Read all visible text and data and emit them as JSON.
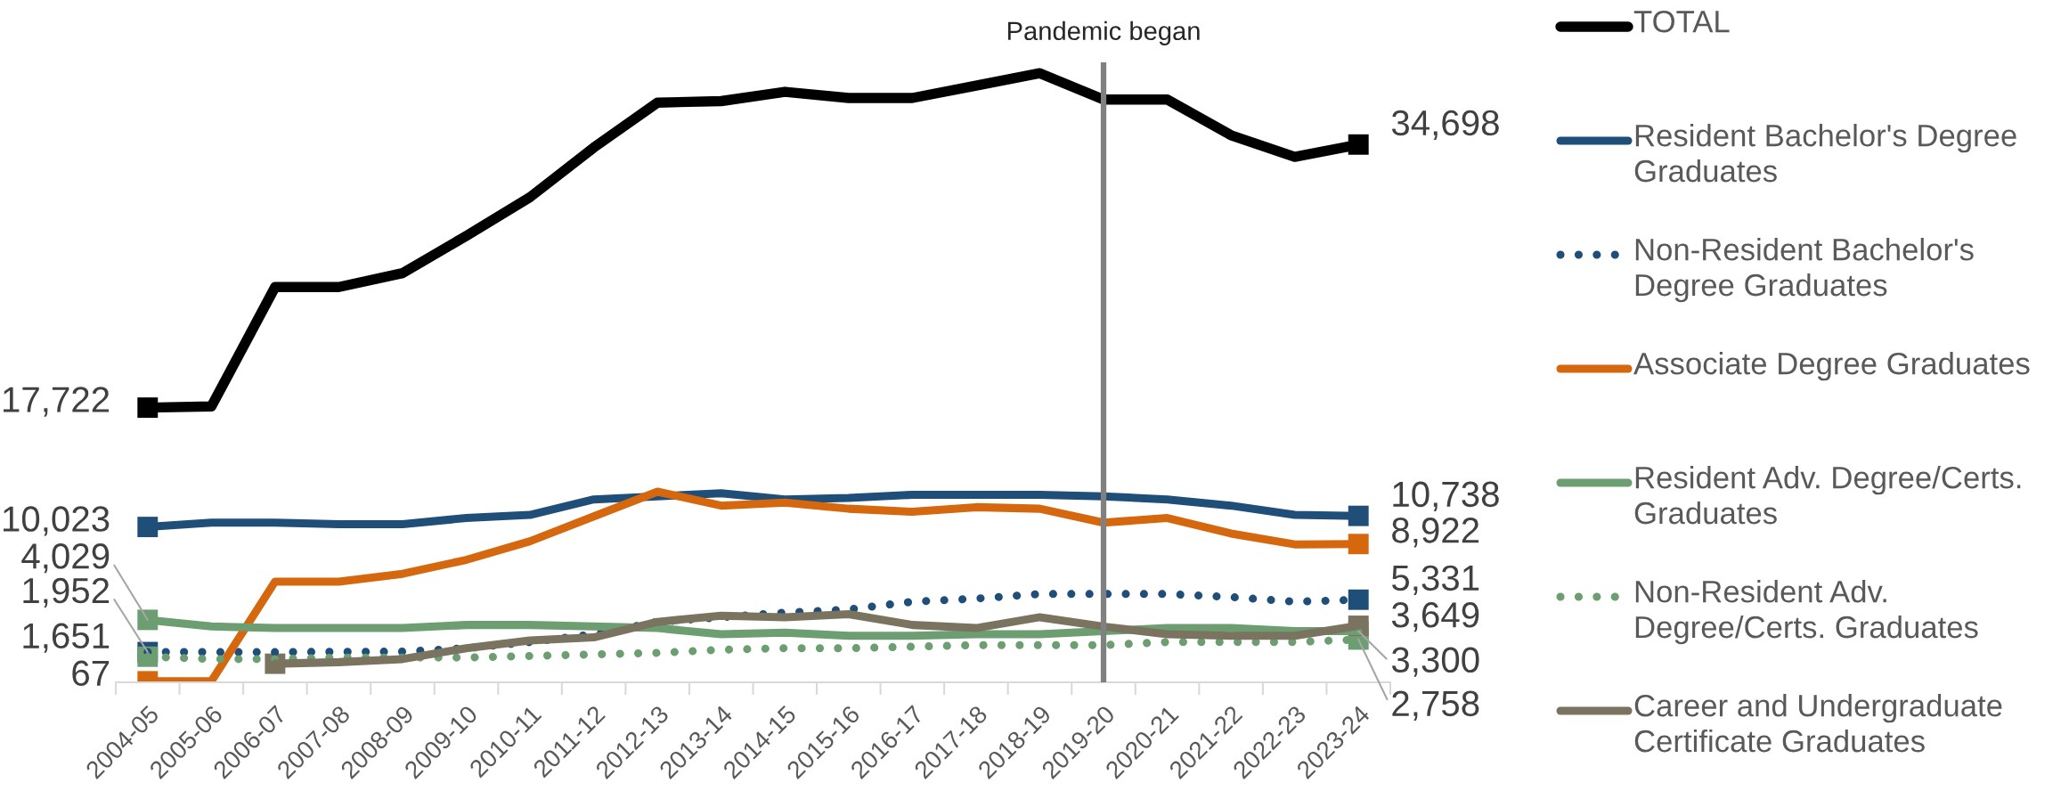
{
  "chart_data": {
    "type": "line",
    "categories": [
      "2004-05",
      "2005-06",
      "2006-07",
      "2007-08",
      "2008-09",
      "2009-10",
      "2010-11",
      "2011-12",
      "2012-13",
      "2013-14",
      "2014-15",
      "2015-16",
      "2016-17",
      "2017-18",
      "2018-19",
      "2019-20",
      "2020-21",
      "2021-22",
      "2022-23",
      "2023-24"
    ],
    "ylim": [
      0,
      40000
    ],
    "tick_labels": "x",
    "legend": "right",
    "series": [
      {
        "name": "TOTAL",
        "color": "#000000",
        "line_style": "solid",
        "values": [
          17722,
          17800,
          25500,
          25500,
          26400,
          28800,
          31300,
          34500,
          37400,
          37500,
          38100,
          37700,
          37700,
          38500,
          39300,
          37600,
          37600,
          35300,
          33900,
          34698
        ],
        "value_labels": [
          "17,722",
          null,
          null,
          null,
          null,
          null,
          null,
          null,
          null,
          null,
          null,
          null,
          null,
          null,
          null,
          null,
          null,
          null,
          null,
          "34,698"
        ]
      },
      {
        "name": "Resident Bachelor's Degree Graduates",
        "color": "#1f4e79",
        "line_style": "solid",
        "values": [
          10023,
          10300,
          10300,
          10200,
          10200,
          10600,
          10800,
          11800,
          12000,
          12200,
          11800,
          11900,
          12100,
          12100,
          12100,
          12000,
          11800,
          11400,
          10800,
          10738
        ],
        "value_labels": [
          "10,023",
          null,
          null,
          null,
          null,
          null,
          null,
          null,
          null,
          null,
          null,
          null,
          null,
          null,
          null,
          null,
          null,
          null,
          null,
          "10,738"
        ]
      },
      {
        "name": "Non-Resident Bachelor's Degree Graduates",
        "color": "#1f4e79",
        "line_style": "dotted",
        "values": [
          1952,
          1950,
          1950,
          1970,
          1980,
          2200,
          2600,
          3100,
          3900,
          4200,
          4500,
          4700,
          5200,
          5400,
          5700,
          5700,
          5700,
          5500,
          5200,
          5331
        ],
        "value_labels": [
          "1,952",
          null,
          null,
          null,
          null,
          null,
          null,
          null,
          null,
          null,
          null,
          null,
          null,
          null,
          null,
          null,
          null,
          null,
          null,
          "5,331"
        ]
      },
      {
        "name": "Associate Degree Graduates",
        "color": "#d5680f",
        "line_style": "solid",
        "values": [
          67,
          70,
          6500,
          6500,
          7000,
          7900,
          9100,
          10700,
          12300,
          11400,
          11600,
          11200,
          11000,
          11300,
          11200,
          10300,
          10600,
          9600,
          8900,
          8922
        ],
        "value_labels": [
          "67",
          null,
          null,
          null,
          null,
          null,
          null,
          null,
          null,
          null,
          null,
          null,
          null,
          null,
          null,
          null,
          null,
          null,
          null,
          "8,922"
        ]
      },
      {
        "name": "Resident Adv. Degree/Certs. Graduates",
        "color": "#6d9e72",
        "line_style": "solid",
        "values": [
          4029,
          3600,
          3500,
          3500,
          3500,
          3700,
          3700,
          3600,
          3500,
          3100,
          3200,
          3000,
          3000,
          3100,
          3100,
          3300,
          3500,
          3500,
          3300,
          3300
        ],
        "value_labels": [
          "4,029",
          null,
          null,
          null,
          null,
          null,
          null,
          null,
          null,
          null,
          null,
          null,
          null,
          null,
          null,
          null,
          null,
          null,
          null,
          "3,300"
        ]
      },
      {
        "name": "Non-Resident Adv. Degree/Certs. Graduates",
        "color": "#6d9e72",
        "line_style": "dotted",
        "values": [
          1651,
          1500,
          1500,
          1600,
          1600,
          1600,
          1700,
          1800,
          1900,
          2100,
          2200,
          2200,
          2300,
          2400,
          2400,
          2400,
          2600,
          2600,
          2600,
          2758
        ],
        "value_labels": [
          "1,651",
          null,
          null,
          null,
          null,
          null,
          null,
          null,
          null,
          null,
          null,
          null,
          null,
          null,
          null,
          null,
          null,
          null,
          null,
          "2,758"
        ]
      },
      {
        "name": "Career and Undergraduate Certificate Graduates",
        "color": "#7a735f",
        "line_style": "solid",
        "values": [
          null,
          null,
          1200,
          1300,
          1500,
          2200,
          2700,
          2900,
          3900,
          4300,
          4200,
          4400,
          3700,
          3500,
          4200,
          3600,
          3100,
          3000,
          3000,
          3649
        ],
        "value_labels": [
          null,
          null,
          null,
          null,
          null,
          null,
          null,
          null,
          null,
          null,
          null,
          null,
          null,
          null,
          null,
          null,
          null,
          null,
          null,
          "3,649"
        ]
      }
    ],
    "ref_lines": [
      {
        "axis": "x",
        "value": "2019-20",
        "label": "Pandemic began",
        "color": "#808080"
      }
    ]
  }
}
